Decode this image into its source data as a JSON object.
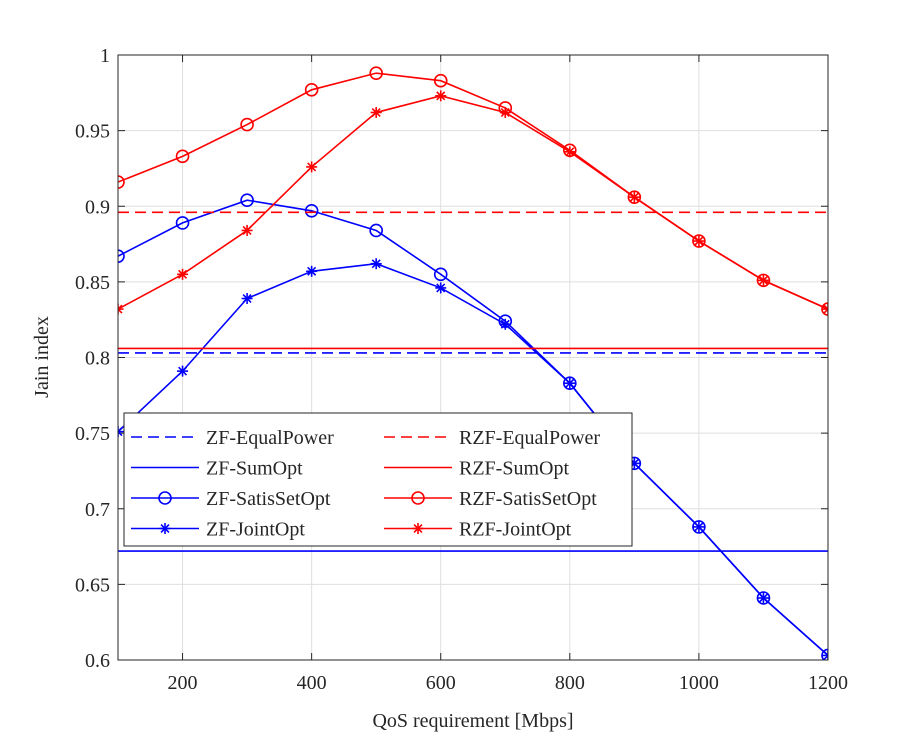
{
  "chart_data": {
    "type": "line",
    "title": "",
    "xlabel": "QoS requirement [Mbps]",
    "ylabel": "Jain index",
    "xlim": [
      100,
      1200
    ],
    "ylim": [
      0.6,
      1.0
    ],
    "xticks": [
      200,
      400,
      600,
      800,
      1000,
      1200
    ],
    "xtick_labels": [
      "200",
      "400",
      "600",
      "800",
      "1000",
      "1200"
    ],
    "yticks": [
      0.6,
      0.65,
      0.7,
      0.75,
      0.8,
      0.85,
      0.9,
      0.95,
      1.0
    ],
    "ytick_labels": [
      "0.6",
      "0.65",
      "0.7",
      "0.75",
      "0.8",
      "0.85",
      "0.9",
      "0.95",
      "1"
    ],
    "grid": true,
    "legend_position": "lower-left",
    "x": [
      100,
      200,
      300,
      400,
      500,
      600,
      700,
      800,
      900,
      1000,
      1100,
      1200
    ],
    "series": [
      {
        "name": "ZF-EqualPower",
        "color": "#0000ff",
        "style": "dashed",
        "marker": "none",
        "values": [
          0.803,
          0.803,
          0.803,
          0.803,
          0.803,
          0.803,
          0.803,
          0.803,
          0.803,
          0.803,
          0.803,
          0.803
        ]
      },
      {
        "name": "ZF-SumOpt",
        "color": "#0000ff",
        "style": "solid",
        "marker": "none",
        "values": [
          0.672,
          0.672,
          0.672,
          0.672,
          0.672,
          0.672,
          0.672,
          0.672,
          0.672,
          0.672,
          0.672,
          0.672
        ]
      },
      {
        "name": "ZF-SatisSetOpt",
        "color": "#0000ff",
        "style": "solid",
        "marker": "circle",
        "values": [
          0.867,
          0.889,
          0.904,
          0.897,
          0.884,
          0.855,
          0.824,
          0.783,
          0.73,
          0.688,
          0.641,
          0.603
        ]
      },
      {
        "name": "ZF-JointOpt",
        "color": "#0000ff",
        "style": "solid",
        "marker": "star",
        "values": [
          0.751,
          0.791,
          0.839,
          0.857,
          0.862,
          0.846,
          0.822,
          0.783,
          0.73,
          0.688,
          0.641,
          0.603
        ]
      },
      {
        "name": "RZF-EqualPower",
        "color": "#ff0000",
        "style": "dashed",
        "marker": "none",
        "values": [
          0.896,
          0.896,
          0.896,
          0.896,
          0.896,
          0.896,
          0.896,
          0.896,
          0.896,
          0.896,
          0.896,
          0.896
        ]
      },
      {
        "name": "RZF-SumOpt",
        "color": "#ff0000",
        "style": "solid",
        "marker": "none",
        "values": [
          0.806,
          0.806,
          0.806,
          0.806,
          0.806,
          0.806,
          0.806,
          0.806,
          0.806,
          0.806,
          0.806,
          0.806
        ]
      },
      {
        "name": "RZF-SatisSetOpt",
        "color": "#ff0000",
        "style": "solid",
        "marker": "circle",
        "values": [
          0.916,
          0.933,
          0.954,
          0.977,
          0.988,
          0.983,
          0.965,
          0.937,
          0.906,
          0.877,
          0.851,
          0.832
        ]
      },
      {
        "name": "RZF-JointOpt",
        "color": "#ff0000",
        "style": "solid",
        "marker": "star",
        "values": [
          0.832,
          0.855,
          0.884,
          0.926,
          0.962,
          0.973,
          0.962,
          0.936,
          0.906,
          0.877,
          0.851,
          0.832
        ]
      }
    ],
    "legend_order": [
      "ZF-EqualPower",
      "RZF-EqualPower",
      "ZF-SumOpt",
      "RZF-SumOpt",
      "ZF-SatisSetOpt",
      "RZF-SatisSetOpt",
      "ZF-JointOpt",
      "RZF-JointOpt"
    ]
  }
}
